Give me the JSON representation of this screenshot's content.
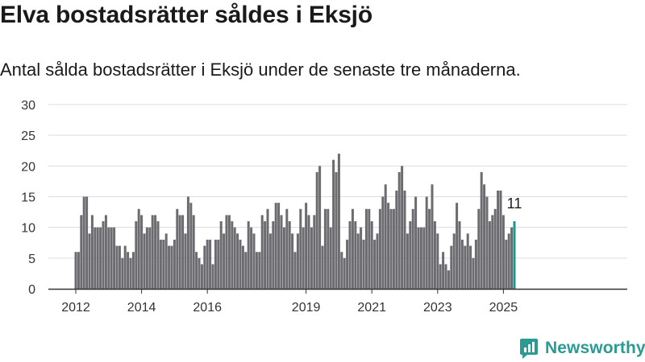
{
  "title": "Elva bostadsrätter såldes i Eksjö",
  "subtitle": "Antal sålda bostadsrätter i Eksjö under de senaste tre månaderna.",
  "brand": {
    "name": "Newsworthy",
    "icon": "newsworthy-logo-icon"
  },
  "colors": {
    "bar": "#6b6b70",
    "highlight": "#1e958f",
    "grid": "#dcdcdc",
    "text": "#1a1a1a",
    "brand": "#2a9a92"
  },
  "chart_data": {
    "type": "bar",
    "title": "",
    "xlabel": "",
    "ylabel": "",
    "ylim": [
      0,
      30
    ],
    "yticks": [
      0,
      5,
      10,
      15,
      20,
      25,
      30
    ],
    "grid": true,
    "legend": "none",
    "x_start": "2012-01",
    "x_end": "2025-03",
    "xticks": [
      {
        "label": "2012",
        "date": "2012-01"
      },
      {
        "label": "2014",
        "date": "2014-01"
      },
      {
        "label": "2016",
        "date": "2016-01"
      },
      {
        "label": "2019",
        "date": "2019-01"
      },
      {
        "label": "2021",
        "date": "2021-01"
      },
      {
        "label": "2023",
        "date": "2023-01"
      },
      {
        "label": "2025",
        "date": "2025-01"
      }
    ],
    "values": [
      6,
      6,
      12,
      15,
      15,
      9,
      12,
      10,
      10,
      10,
      11,
      12,
      10,
      10,
      10,
      7,
      7,
      5,
      7,
      6,
      5,
      6,
      11,
      13,
      12,
      9,
      10,
      10,
      12,
      12,
      11,
      8,
      8,
      9,
      7,
      7,
      8,
      13,
      12,
      12,
      9,
      15,
      14,
      12,
      6,
      5,
      4,
      7,
      8,
      8,
      4,
      8,
      8,
      11,
      9,
      12,
      12,
      11,
      10,
      9,
      8,
      7,
      6,
      11,
      10,
      9,
      6,
      6,
      12,
      11,
      13,
      9,
      11,
      14,
      14,
      12,
      10,
      13,
      11,
      9,
      6,
      9,
      13,
      10,
      14,
      12,
      10,
      12,
      19,
      20,
      7,
      13,
      13,
      10,
      21,
      19,
      22,
      6,
      5,
      8,
      11,
      13,
      11,
      9,
      10,
      8,
      13,
      13,
      11,
      8,
      9,
      13,
      15,
      17,
      14,
      13,
      13,
      16,
      19,
      20,
      16,
      9,
      11,
      13,
      15,
      10,
      10,
      10,
      15,
      13,
      17,
      11,
      9,
      4,
      6,
      4,
      3,
      7,
      9,
      14,
      11,
      8,
      7,
      9,
      7,
      5,
      8,
      13,
      19,
      17,
      15,
      11,
      12,
      13,
      16,
      16,
      12,
      8,
      9,
      10,
      11
    ],
    "last_value": 11,
    "last_label": "11"
  }
}
